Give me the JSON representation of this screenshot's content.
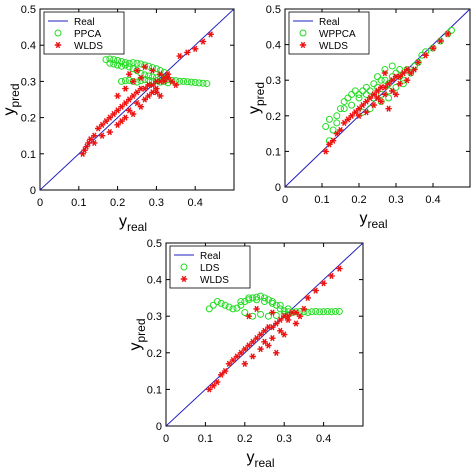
{
  "colors": {
    "real": "#1f1fbf",
    "ppca": "#22dd22",
    "wlds": "#ee1111",
    "axis": "#000000"
  },
  "chart_data": [
    {
      "type": "scatter",
      "xlabel": "y",
      "xlabel_sub": "real",
      "ylabel": "y",
      "ylabel_sub": "pred",
      "xlim": [
        0,
        0.5
      ],
      "ylim": [
        0,
        0.5
      ],
      "xticks": [
        "0",
        "0.1",
        "0.2",
        "0.3",
        "0.4"
      ],
      "yticks": [
        "0",
        "0.1",
        "0.2",
        "0.3",
        "0.4",
        "0.5"
      ],
      "legend_position": "top-left",
      "grid": false,
      "series": [
        {
          "name": "Real",
          "kind": "line",
          "x": [
            0,
            0.5
          ],
          "y": [
            0,
            0.5
          ]
        },
        {
          "name": "PPCA",
          "kind": "circle",
          "x": [
            0.17,
            0.18,
            0.19,
            0.2,
            0.21,
            0.22,
            0.23,
            0.24,
            0.25,
            0.26,
            0.27,
            0.28,
            0.29,
            0.3,
            0.31,
            0.32,
            0.18,
            0.19,
            0.2,
            0.21,
            0.22,
            0.23,
            0.24,
            0.25,
            0.26,
            0.27,
            0.28,
            0.29,
            0.3,
            0.31,
            0.32,
            0.33,
            0.34,
            0.35,
            0.36,
            0.37,
            0.38,
            0.39,
            0.4,
            0.41,
            0.42,
            0.43,
            0.21,
            0.22,
            0.23,
            0.24,
            0.25,
            0.26,
            0.27,
            0.28,
            0.29,
            0.3,
            0.31,
            0.32,
            0.33
          ],
          "y": [
            0.36,
            0.362,
            0.36,
            0.358,
            0.355,
            0.352,
            0.35,
            0.352,
            0.35,
            0.348,
            0.345,
            0.342,
            0.338,
            0.335,
            0.33,
            0.325,
            0.35,
            0.348,
            0.345,
            0.342,
            0.345,
            0.34,
            0.335,
            0.33,
            0.322,
            0.318,
            0.315,
            0.312,
            0.31,
            0.308,
            0.306,
            0.305,
            0.303,
            0.302,
            0.3,
            0.3,
            0.299,
            0.298,
            0.297,
            0.296,
            0.295,
            0.294,
            0.3,
            0.302,
            0.303,
            0.3,
            0.298,
            0.302,
            0.305,
            0.303,
            0.3,
            0.302,
            0.298,
            0.3,
            0.296
          ]
        },
        {
          "name": "WLDS",
          "kind": "star",
          "x": [
            0.11,
            0.115,
            0.12,
            0.125,
            0.13,
            0.14,
            0.15,
            0.16,
            0.17,
            0.18,
            0.19,
            0.2,
            0.21,
            0.22,
            0.23,
            0.24,
            0.25,
            0.26,
            0.27,
            0.28,
            0.29,
            0.3,
            0.31,
            0.32,
            0.33,
            0.34,
            0.35,
            0.2,
            0.22,
            0.24,
            0.26,
            0.28,
            0.3,
            0.32,
            0.25,
            0.27,
            0.29,
            0.31,
            0.33,
            0.23,
            0.25,
            0.27,
            0.29,
            0.31,
            0.36,
            0.38,
            0.4,
            0.42,
            0.44,
            0.28,
            0.3,
            0.26,
            0.24,
            0.22,
            0.18,
            0.16,
            0.14,
            0.2,
            0.21,
            0.23
          ],
          "y": [
            0.1,
            0.11,
            0.12,
            0.13,
            0.14,
            0.15,
            0.17,
            0.18,
            0.19,
            0.2,
            0.21,
            0.22,
            0.23,
            0.24,
            0.25,
            0.26,
            0.27,
            0.28,
            0.28,
            0.29,
            0.29,
            0.3,
            0.3,
            0.31,
            0.31,
            0.3,
            0.29,
            0.26,
            0.28,
            0.3,
            0.31,
            0.29,
            0.28,
            0.3,
            0.24,
            0.25,
            0.27,
            0.26,
            0.32,
            0.32,
            0.33,
            0.34,
            0.33,
            0.32,
            0.37,
            0.38,
            0.39,
            0.41,
            0.43,
            0.26,
            0.27,
            0.23,
            0.21,
            0.2,
            0.16,
            0.15,
            0.13,
            0.18,
            0.19,
            0.22
          ]
        }
      ]
    },
    {
      "type": "scatter",
      "xlabel": "y",
      "xlabel_sub": "real",
      "ylabel": "y",
      "ylabel_sub": "pred",
      "xlim": [
        0,
        0.5
      ],
      "ylim": [
        0,
        0.5
      ],
      "xticks": [
        "0",
        "0.1",
        "0.2",
        "0.3",
        "0.4"
      ],
      "yticks": [
        "0",
        "0.1",
        "0.2",
        "0.3",
        "0.4",
        "0.5"
      ],
      "legend_position": "top-left",
      "grid": false,
      "series": [
        {
          "name": "Real",
          "kind": "line",
          "x": [
            0,
            0.5
          ],
          "y": [
            0,
            0.5
          ]
        },
        {
          "name": "WPPCA",
          "kind": "circle",
          "x": [
            0.11,
            0.12,
            0.13,
            0.14,
            0.15,
            0.16,
            0.17,
            0.18,
            0.19,
            0.2,
            0.21,
            0.22,
            0.23,
            0.24,
            0.25,
            0.26,
            0.27,
            0.28,
            0.29,
            0.3,
            0.31,
            0.32,
            0.33,
            0.34,
            0.35,
            0.36,
            0.37,
            0.38,
            0.4,
            0.42,
            0.44,
            0.45,
            0.12,
            0.14,
            0.16,
            0.18,
            0.2,
            0.22,
            0.24,
            0.26,
            0.28,
            0.3,
            0.32,
            0.25,
            0.27,
            0.29,
            0.31,
            0.23,
            0.21,
            0.26,
            0.28
          ],
          "y": [
            0.17,
            0.19,
            0.16,
            0.2,
            0.22,
            0.24,
            0.25,
            0.26,
            0.27,
            0.26,
            0.27,
            0.28,
            0.27,
            0.29,
            0.28,
            0.3,
            0.3,
            0.29,
            0.31,
            0.32,
            0.31,
            0.3,
            0.33,
            0.32,
            0.34,
            0.35,
            0.37,
            0.38,
            0.39,
            0.41,
            0.43,
            0.44,
            0.13,
            0.18,
            0.22,
            0.23,
            0.25,
            0.26,
            0.25,
            0.24,
            0.27,
            0.28,
            0.29,
            0.31,
            0.33,
            0.34,
            0.33,
            0.22,
            0.21,
            0.26,
            0.25
          ]
        },
        {
          "name": "WLDS",
          "kind": "star",
          "x": [
            0.11,
            0.12,
            0.13,
            0.14,
            0.15,
            0.16,
            0.17,
            0.18,
            0.19,
            0.2,
            0.21,
            0.22,
            0.23,
            0.24,
            0.25,
            0.26,
            0.27,
            0.28,
            0.29,
            0.3,
            0.31,
            0.32,
            0.33,
            0.34,
            0.35,
            0.36,
            0.38,
            0.4,
            0.42,
            0.44,
            0.25,
            0.27,
            0.29,
            0.24,
            0.26,
            0.28,
            0.3,
            0.22,
            0.2,
            0.31,
            0.33,
            0.27
          ],
          "y": [
            0.1,
            0.12,
            0.13,
            0.15,
            0.16,
            0.18,
            0.19,
            0.2,
            0.21,
            0.22,
            0.23,
            0.24,
            0.25,
            0.26,
            0.27,
            0.28,
            0.28,
            0.29,
            0.3,
            0.31,
            0.31,
            0.32,
            0.33,
            0.32,
            0.33,
            0.35,
            0.37,
            0.39,
            0.41,
            0.43,
            0.25,
            0.26,
            0.27,
            0.23,
            0.24,
            0.22,
            0.26,
            0.21,
            0.2,
            0.29,
            0.3,
            0.32
          ]
        }
      ]
    },
    {
      "type": "scatter",
      "xlabel": "y",
      "xlabel_sub": "real",
      "ylabel": "y",
      "ylabel_sub": "pred",
      "xlim": [
        0,
        0.5
      ],
      "ylim": [
        0,
        0.5
      ],
      "xticks": [
        "0",
        "0.1",
        "0.2",
        "0.3",
        "0.4"
      ],
      "yticks": [
        "0",
        "0.1",
        "0.2",
        "0.3",
        "0.4",
        "0.5"
      ],
      "legend_position": "top-left",
      "grid": false,
      "series": [
        {
          "name": "Real",
          "kind": "line",
          "x": [
            0,
            0.5
          ],
          "y": [
            0,
            0.5
          ]
        },
        {
          "name": "LDS",
          "kind": "circle",
          "x": [
            0.11,
            0.12,
            0.13,
            0.14,
            0.15,
            0.16,
            0.17,
            0.18,
            0.19,
            0.2,
            0.21,
            0.22,
            0.23,
            0.24,
            0.25,
            0.26,
            0.27,
            0.28,
            0.29,
            0.3,
            0.31,
            0.32,
            0.33,
            0.34,
            0.35,
            0.36,
            0.37,
            0.38,
            0.39,
            0.4,
            0.41,
            0.42,
            0.43,
            0.44,
            0.19,
            0.21,
            0.23,
            0.25,
            0.27,
            0.29,
            0.31,
            0.2,
            0.22,
            0.24,
            0.26,
            0.28,
            0.3
          ],
          "y": [
            0.32,
            0.33,
            0.34,
            0.335,
            0.33,
            0.325,
            0.32,
            0.322,
            0.33,
            0.34,
            0.345,
            0.35,
            0.352,
            0.355,
            0.35,
            0.345,
            0.34,
            0.33,
            0.32,
            0.315,
            0.312,
            0.31,
            0.312,
            0.313,
            0.312,
            0.31,
            0.312,
            0.313,
            0.312,
            0.312,
            0.313,
            0.312,
            0.313,
            0.313,
            0.34,
            0.35,
            0.345,
            0.34,
            0.335,
            0.33,
            0.32,
            0.31,
            0.3,
            0.305,
            0.3,
            0.302,
            0.305
          ]
        },
        {
          "name": "WLDS",
          "kind": "star",
          "x": [
            0.11,
            0.12,
            0.13,
            0.14,
            0.15,
            0.16,
            0.17,
            0.18,
            0.19,
            0.2,
            0.21,
            0.22,
            0.23,
            0.24,
            0.25,
            0.26,
            0.27,
            0.28,
            0.29,
            0.3,
            0.31,
            0.32,
            0.33,
            0.34,
            0.35,
            0.36,
            0.38,
            0.4,
            0.42,
            0.44,
            0.25,
            0.27,
            0.29,
            0.24,
            0.26,
            0.28,
            0.3,
            0.22,
            0.2,
            0.31,
            0.33,
            0.27,
            0.23,
            0.21
          ],
          "y": [
            0.1,
            0.11,
            0.12,
            0.14,
            0.15,
            0.17,
            0.18,
            0.19,
            0.2,
            0.21,
            0.22,
            0.23,
            0.24,
            0.25,
            0.26,
            0.27,
            0.27,
            0.28,
            0.29,
            0.3,
            0.3,
            0.31,
            0.31,
            0.3,
            0.32,
            0.35,
            0.37,
            0.39,
            0.41,
            0.43,
            0.23,
            0.24,
            0.26,
            0.21,
            0.22,
            0.2,
            0.25,
            0.19,
            0.17,
            0.29,
            0.28,
            0.31,
            0.32,
            0.3
          ]
        }
      ]
    }
  ]
}
